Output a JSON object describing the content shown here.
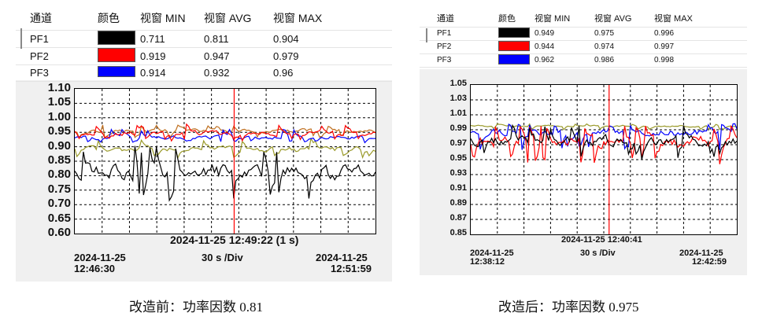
{
  "panels": [
    {
      "id": "before",
      "legend": {
        "headers": [
          "通道",
          "颜色",
          "视窗 MIN",
          "视窗 AVG",
          "视窗 MAX"
        ],
        "rows": [
          {
            "channel": "PF1",
            "color": "#000000",
            "min": "0.711",
            "avg": "0.811",
            "max": "0.904"
          },
          {
            "channel": "PF2",
            "color": "#ff0000",
            "min": "0.919",
            "avg": "0.947",
            "max": "0.979"
          },
          {
            "channel": "PF3",
            "color": "#0000ff",
            "min": "0.914",
            "avg": "0.932",
            "max": "0.96"
          }
        ]
      },
      "cursor_label": "2024-11-25 12:49:22 (1 s)",
      "start_date": "2024-11-25",
      "start_time": "12:46:30",
      "end_date": "2024-11-25",
      "end_time": "12:51:59",
      "division": "30 s /Div",
      "caption": "改造前：功率因数 0.81"
    },
    {
      "id": "after",
      "legend": {
        "headers": [
          "通道",
          "颜色",
          "视窗 MIN",
          "视窗 AVG",
          "视窗 MAX"
        ],
        "rows": [
          {
            "channel": "PF1",
            "color": "#000000",
            "min": "0.949",
            "avg": "0.975",
            "max": "0.996"
          },
          {
            "channel": "PF2",
            "color": "#ff0000",
            "min": "0.944",
            "avg": "0.974",
            "max": "0.997"
          },
          {
            "channel": "PF3",
            "color": "#0000ff",
            "min": "0.962",
            "avg": "0.986",
            "max": "0.998"
          }
        ]
      },
      "cursor_label": "2024-11-25 12:40:41",
      "start_date": "2024-11-25",
      "start_time": "12:38:12",
      "end_date": "2024-11-25",
      "end_time": "12:42:59",
      "division": "30 s /Div",
      "caption": "改造后：功率因数 0.975"
    }
  ],
  "chart_data": [
    {
      "type": "line",
      "yticks": [
        "1.10",
        "1.05",
        "1.00",
        "0.95",
        "0.90",
        "0.85",
        "0.80",
        "0.75",
        "0.70",
        "0.65",
        "0.60"
      ],
      "ylim": [
        0.6,
        1.1
      ],
      "xlim": [
        "12:46:30",
        "12:51:59"
      ],
      "cursor_time": "12:49:22",
      "grid": true,
      "series": [
        {
          "name": "PF1",
          "color": "#000000",
          "min": 0.711,
          "avg": 0.811,
          "max": 0.904
        },
        {
          "name": "PF2",
          "color": "#ff0000",
          "min": 0.919,
          "avg": 0.947,
          "max": 0.979
        },
        {
          "name": "PF3",
          "color": "#0000ff",
          "min": 0.914,
          "avg": 0.932,
          "max": 0.96
        },
        {
          "color": "#9a9a2a",
          "min": 0.86,
          "avg": 0.89,
          "max": 0.93
        },
        {
          "color": "#c07020",
          "min": 0.93,
          "avg": 0.955,
          "max": 0.975
        }
      ]
    },
    {
      "type": "line",
      "yticks": [
        "1.05",
        "1.03",
        "1.01",
        "0.99",
        "0.97",
        "0.95",
        "0.93",
        "0.91",
        "0.89",
        "0.87",
        "0.85"
      ],
      "ylim": [
        0.85,
        1.05
      ],
      "xlim": [
        "12:38:12",
        "12:42:59"
      ],
      "cursor_time": "12:40:41",
      "grid": true,
      "series": [
        {
          "name": "PF1",
          "color": "#000000",
          "min": 0.949,
          "avg": 0.975,
          "max": 0.996
        },
        {
          "name": "PF2",
          "color": "#ff0000",
          "min": 0.944,
          "avg": 0.974,
          "max": 0.997
        },
        {
          "name": "PF3",
          "color": "#0000ff",
          "min": 0.962,
          "avg": 0.986,
          "max": 0.998
        },
        {
          "color": "#9a9a2a",
          "min": 0.99,
          "avg": 0.995,
          "max": 0.998
        }
      ]
    }
  ]
}
